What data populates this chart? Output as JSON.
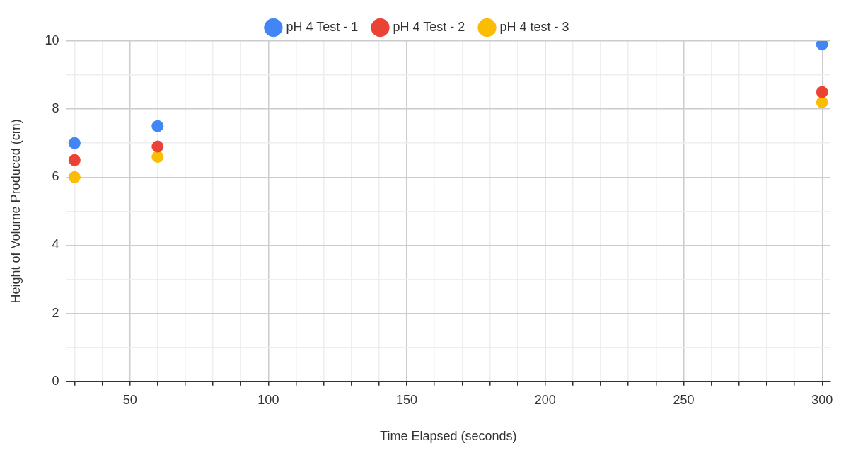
{
  "chart_data": {
    "type": "scatter",
    "xlabel": "Time Elapsed (seconds)",
    "ylabel": "Height of Volume Produced (cm)",
    "x": [
      30,
      60,
      300
    ],
    "series": [
      {
        "name": "pH 4 Test - 1",
        "color": "#4285f4",
        "values": [
          7.0,
          7.5,
          9.9
        ]
      },
      {
        "name": "pH 4 Test - 2",
        "color": "#ea4335",
        "values": [
          6.5,
          6.9,
          8.5
        ]
      },
      {
        "name": "pH 4 test - 3",
        "color": "#fbbc04",
        "values": [
          6.0,
          6.6,
          8.2
        ]
      }
    ],
    "xlim": [
      27,
      303
    ],
    "xticks": [
      {
        "value": 30,
        "label": null
      },
      {
        "value": 40,
        "label": null
      },
      50,
      {
        "value": 60,
        "label": null
      },
      {
        "value": 70,
        "label": null
      },
      {
        "value": 80,
        "label": null
      },
      {
        "value": 90,
        "label": null
      },
      100,
      {
        "value": 110,
        "label": null
      },
      {
        "value": 120,
        "label": null
      },
      {
        "value": 130,
        "label": null
      },
      {
        "value": 140,
        "label": null
      },
      150,
      {
        "value": 160,
        "label": null
      },
      {
        "value": 170,
        "label": null
      },
      {
        "value": 180,
        "label": null
      },
      {
        "value": 190,
        "label": null
      },
      200,
      {
        "value": 210,
        "label": null
      },
      {
        "value": 220,
        "label": null
      },
      {
        "value": 230,
        "label": null
      },
      {
        "value": 240,
        "label": null
      },
      250,
      {
        "value": 260,
        "label": null
      },
      {
        "value": 270,
        "label": null
      },
      {
        "value": 280,
        "label": null
      },
      {
        "value": 290,
        "label": null
      },
      300
    ],
    "ylim": [
      0,
      10
    ],
    "yticks": [
      0,
      {
        "value": 1,
        "label": null
      },
      2,
      {
        "value": 3,
        "label": null
      },
      4,
      {
        "value": 5,
        "label": null
      },
      6,
      {
        "value": 7,
        "label": null
      },
      8,
      {
        "value": 9,
        "label": null
      },
      10
    ],
    "grid": true,
    "legend": "top",
    "marker": "circle"
  }
}
